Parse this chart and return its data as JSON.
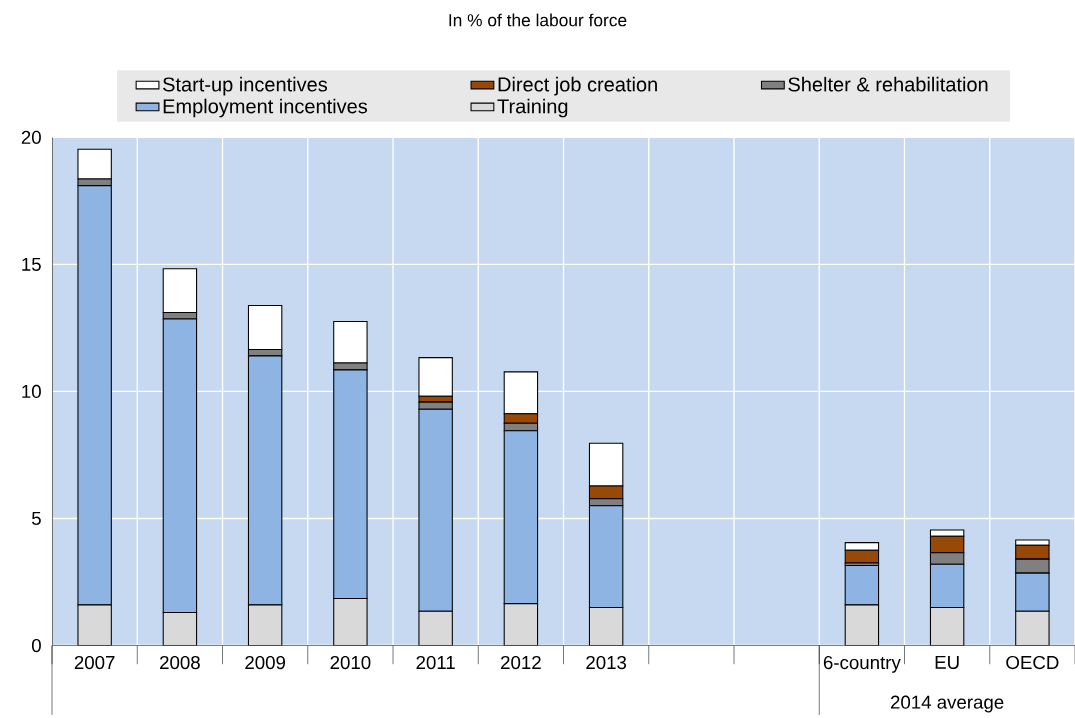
{
  "chart_data": {
    "type": "bar",
    "stacked": true,
    "title": "In % of the labour force",
    "categories": [
      "2007",
      "2008",
      "2009",
      "2010",
      "2011",
      "2012",
      "2013",
      null,
      null,
      "6-country",
      "EU",
      "OECD"
    ],
    "series": [
      {
        "name": "Training",
        "color": "#d9d9d9",
        "values": [
          1.6,
          1.3,
          1.6,
          1.85,
          1.35,
          1.65,
          1.5,
          null,
          null,
          1.6,
          1.5,
          1.35
        ]
      },
      {
        "name": "Employment incentives",
        "color": "#8eb4e3",
        "values": [
          16.5,
          11.55,
          9.8,
          9.0,
          7.95,
          6.8,
          4.0,
          null,
          null,
          1.55,
          1.7,
          1.5
        ]
      },
      {
        "name": "Shelter & rehabilitation",
        "color": "#808080",
        "values": [
          0.26,
          0.26,
          0.25,
          0.27,
          0.28,
          0.3,
          0.28,
          null,
          null,
          0.1,
          0.45,
          0.55
        ]
      },
      {
        "name": "Direct job creation",
        "color": "#984807",
        "values": [
          0,
          0,
          0,
          0,
          0.23,
          0.37,
          0.5,
          null,
          null,
          0.5,
          0.65,
          0.55
        ]
      },
      {
        "name": "Start-up incentives",
        "color": "#ffffff",
        "values": [
          1.17,
          1.72,
          1.73,
          1.63,
          1.52,
          1.65,
          1.68,
          null,
          null,
          0.3,
          0.25,
          0.2
        ]
      }
    ],
    "ylim": [
      0,
      20
    ],
    "yticks": [
      0,
      5,
      10,
      15,
      20
    ],
    "grid": true,
    "legend": "top",
    "annotations": [
      "2014 average"
    ]
  }
}
